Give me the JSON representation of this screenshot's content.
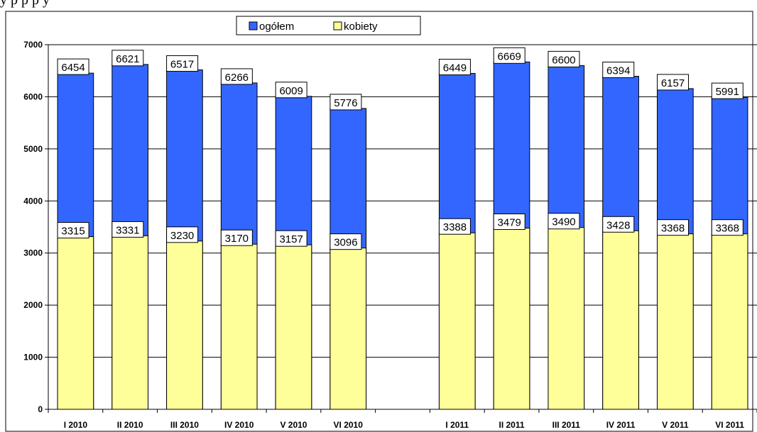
{
  "header_text": "y  p                                  p                                             p                      y",
  "chart_data": {
    "type": "bar",
    "categories": [
      "I 2010",
      "II 2010",
      "III 2010",
      "IV 2010",
      "V 2010",
      "VI 2010",
      "",
      "I 2011",
      "II 2011",
      "III 2011",
      "IV 2011",
      "V 2011",
      "VI 2011"
    ],
    "series": [
      {
        "name": "ogółem",
        "color": "#3366ff",
        "values": [
          6454,
          6621,
          6517,
          6266,
          6009,
          5776,
          null,
          6449,
          6669,
          6600,
          6394,
          6157,
          5991
        ]
      },
      {
        "name": "kobiety",
        "color": "#ffff99",
        "values": [
          3315,
          3331,
          3230,
          3170,
          3157,
          3096,
          null,
          3388,
          3479,
          3490,
          3428,
          3368,
          3368
        ]
      }
    ],
    "data_labels": true,
    "overlap": true,
    "xlabel": "",
    "ylabel": "",
    "ylim": [
      0,
      7000
    ],
    "yticks": [
      0,
      1000,
      2000,
      3000,
      4000,
      5000,
      6000,
      7000
    ],
    "grid": true,
    "legend_position": "top-center"
  }
}
